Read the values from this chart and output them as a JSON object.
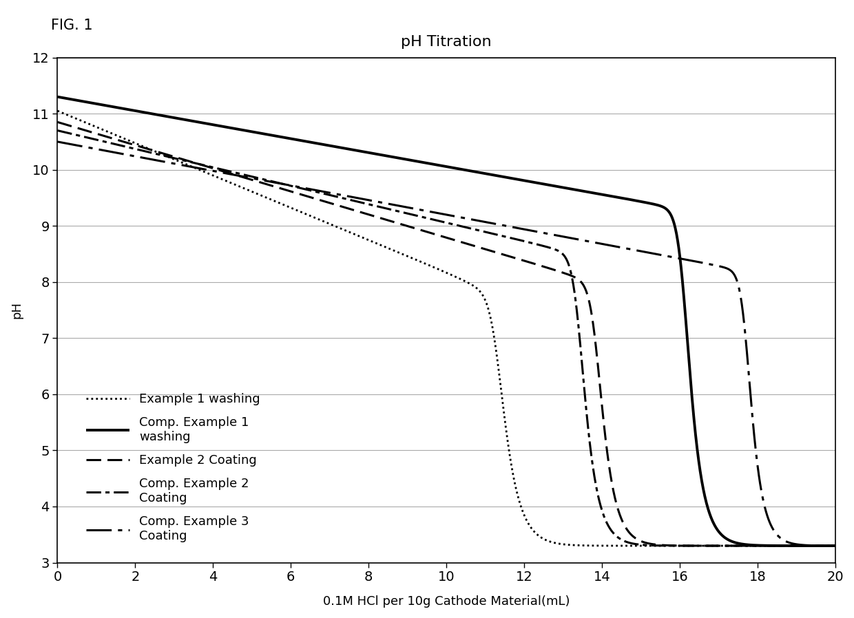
{
  "title": "pH Titration",
  "xlabel": "0.1M HCl per 10g Cathode Material(mL)",
  "ylabel": "pH",
  "xlim": [
    0,
    20
  ],
  "ylim": [
    3,
    12
  ],
  "xticks": [
    0,
    2,
    4,
    6,
    8,
    10,
    12,
    14,
    16,
    18,
    20
  ],
  "yticks": [
    3,
    4,
    5,
    6,
    7,
    8,
    9,
    10,
    11,
    12
  ],
  "fig_label": "FIG. 1",
  "background_color": "#ffffff",
  "line_color": "#000000",
  "curves": [
    {
      "label": "Example 1 washing",
      "linestyle_type": "dotted",
      "linewidth": 2.0,
      "start_ph": 11.05,
      "mid_ph": 7.8,
      "drop_x": 11.3,
      "end_ph": 3.3,
      "drop_steepness": 6.0
    },
    {
      "label": "Comp. Example 1\nwashing",
      "linestyle_type": "solid",
      "linewidth": 2.8,
      "start_ph": 11.3,
      "mid_ph": 9.3,
      "drop_x": 16.1,
      "end_ph": 3.3,
      "drop_steepness": 7.0
    },
    {
      "label": "Example 2 Coating",
      "linestyle_type": "dashed",
      "linewidth": 2.2,
      "start_ph": 10.85,
      "mid_ph": 8.0,
      "drop_x": 13.85,
      "end_ph": 3.3,
      "drop_steepness": 7.0
    },
    {
      "label": "Comp. Example 2\nCoating",
      "linestyle_type": "dashdot",
      "linewidth": 2.2,
      "start_ph": 10.7,
      "mid_ph": 8.5,
      "drop_x": 13.4,
      "end_ph": 3.3,
      "drop_steepness": 7.0
    },
    {
      "label": "Comp. Example 3\nCoating",
      "linestyle_type": "longdashdot",
      "linewidth": 2.2,
      "start_ph": 10.5,
      "mid_ph": 8.2,
      "drop_x": 17.7,
      "end_ph": 3.3,
      "drop_steepness": 8.0
    }
  ]
}
